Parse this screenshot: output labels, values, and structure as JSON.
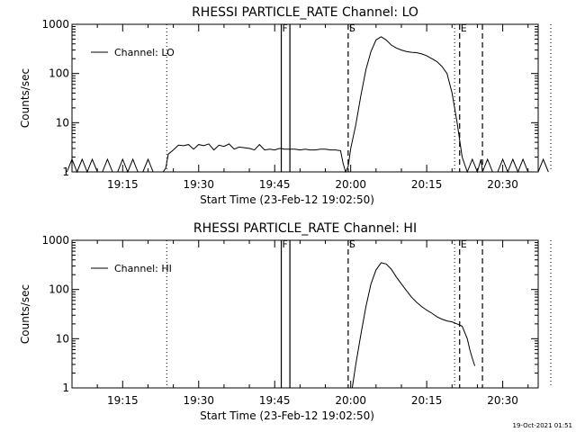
{
  "footer_timestamp": "19-Oct-2021 01:51",
  "chart_data": [
    {
      "type": "line",
      "title": "RHESSI PARTICLE_RATE Channel: LO",
      "xlabel": "Start Time (23-Feb-12 19:02:50)",
      "ylabel": "Counts/sec",
      "y_scale": "log",
      "xlim": [
        "19:05",
        "20:37"
      ],
      "ylim": [
        1,
        1000
      ],
      "x_tick_labels": [
        "19:15",
        "19:30",
        "19:45",
        "20:00",
        "20:15",
        "20:30"
      ],
      "x_ticks_min": [
        1155,
        1170,
        1185,
        1200,
        1215,
        1230
      ],
      "y_tick_labels": [
        "1",
        "10",
        "100",
        "1000"
      ],
      "y_ticks": [
        1,
        10,
        100,
        1000
      ],
      "legend": {
        "label": "Channel: LO",
        "position": "top-left"
      },
      "markers": [
        {
          "label": "F",
          "times_min": [
            1186.3,
            1188.0
          ],
          "style": "solid"
        },
        {
          "label": "S",
          "times_min": [
            1199.5
          ],
          "style": "dashed"
        },
        {
          "label": "E",
          "times_min": [
            1221.5,
            1226.0
          ],
          "style": "dashed"
        }
      ],
      "dotted_lines_min": [
        1163.7,
        1220.5,
        1239.5
      ],
      "series": [
        {
          "name": "Channel: LO",
          "x_min": [
            1144,
            1145,
            1146,
            1147,
            1148,
            1149,
            1150,
            1151,
            1152,
            1153,
            1154,
            1155,
            1156,
            1157,
            1158,
            1159,
            1160,
            1161,
            1162,
            1163,
            1163.5,
            1164,
            1165,
            1166,
            1167,
            1168,
            1169,
            1170,
            1171,
            1172,
            1173,
            1174,
            1175,
            1176,
            1177,
            1178,
            1179,
            1180,
            1181,
            1182,
            1183,
            1184,
            1185,
            1186,
            1187,
            1188,
            1189,
            1190,
            1191,
            1192,
            1193,
            1194,
            1195,
            1196,
            1197,
            1198,
            1198.5,
            1199,
            1199.5,
            1200,
            1201,
            1202,
            1203,
            1204,
            1205,
            1206,
            1207,
            1208,
            1209,
            1210,
            1211,
            1212,
            1213,
            1214,
            1215,
            1216,
            1217,
            1218,
            1219,
            1220,
            1221,
            1222,
            1223,
            1224,
            1225,
            1225.7,
            1226,
            1227,
            1228,
            1229,
            1230,
            1231,
            1232,
            1233,
            1234,
            1235,
            1236,
            1237,
            1238,
            1239
          ],
          "values": [
            1,
            1.8,
            1,
            1.8,
            1,
            1.8,
            1,
            1,
            1.8,
            1,
            1,
            1.8,
            1,
            1.8,
            1,
            1,
            1.8,
            1,
            1,
            1,
            1.2,
            2.3,
            2.8,
            3.5,
            3.4,
            3.6,
            2.9,
            3.6,
            3.4,
            3.7,
            2.8,
            3.5,
            3.3,
            3.7,
            2.9,
            3.2,
            3.1,
            3.0,
            2.8,
            3.6,
            2.8,
            2.9,
            2.8,
            3.0,
            2.9,
            2.9,
            2.9,
            2.8,
            2.9,
            2.8,
            2.8,
            2.9,
            2.9,
            2.8,
            2.8,
            2.7,
            1.5,
            1,
            1.3,
            3,
            9,
            35,
            120,
            280,
            480,
            560,
            480,
            380,
            330,
            300,
            280,
            270,
            265,
            250,
            230,
            200,
            175,
            140,
            100,
            40,
            10,
            2,
            1,
            1.8,
            1,
            1.8,
            1,
            1.8,
            1,
            1,
            1.8,
            1,
            1.8,
            1,
            1.8,
            1,
            1,
            1,
            1.8,
            1
          ]
        }
      ]
    },
    {
      "type": "line",
      "title": "RHESSI PARTICLE_RATE Channel: HI",
      "xlabel": "Start Time (23-Feb-12 19:02:50)",
      "ylabel": "Counts/sec",
      "y_scale": "log",
      "xlim": [
        "19:05",
        "20:37"
      ],
      "ylim": [
        1,
        1000
      ],
      "x_tick_labels": [
        "19:15",
        "19:30",
        "19:45",
        "20:00",
        "20:15",
        "20:30"
      ],
      "x_ticks_min": [
        1155,
        1170,
        1185,
        1200,
        1215,
        1230
      ],
      "y_tick_labels": [
        "1",
        "10",
        "100",
        "1000"
      ],
      "y_ticks": [
        1,
        10,
        100,
        1000
      ],
      "legend": {
        "label": "Channel: HI",
        "position": "top-left"
      },
      "markers": [
        {
          "label": "F",
          "times_min": [
            1186.3,
            1188.0
          ],
          "style": "solid"
        },
        {
          "label": "S",
          "times_min": [
            1199.5
          ],
          "style": "dashed"
        },
        {
          "label": "E",
          "times_min": [
            1221.5,
            1226.0
          ],
          "style": "dashed"
        }
      ],
      "dotted_lines_min": [
        1163.7,
        1220.5,
        1239.5
      ],
      "series": [
        {
          "name": "Channel: HI",
          "x_min": [
            1200.3,
            1201,
            1201.5,
            1202,
            1203,
            1204,
            1205,
            1206,
            1207,
            1208,
            1209,
            1210,
            1211,
            1212,
            1213,
            1214,
            1215,
            1216,
            1217,
            1218,
            1219,
            1220,
            1221,
            1222,
            1223,
            1223.5,
            1224,
            1224.5
          ],
          "values": [
            1,
            3,
            6,
            12,
            45,
            130,
            250,
            350,
            330,
            260,
            180,
            130,
            95,
            70,
            55,
            45,
            38,
            33,
            28,
            25,
            23,
            22,
            20,
            18,
            10,
            6,
            4,
            2.8
          ]
        }
      ]
    }
  ]
}
